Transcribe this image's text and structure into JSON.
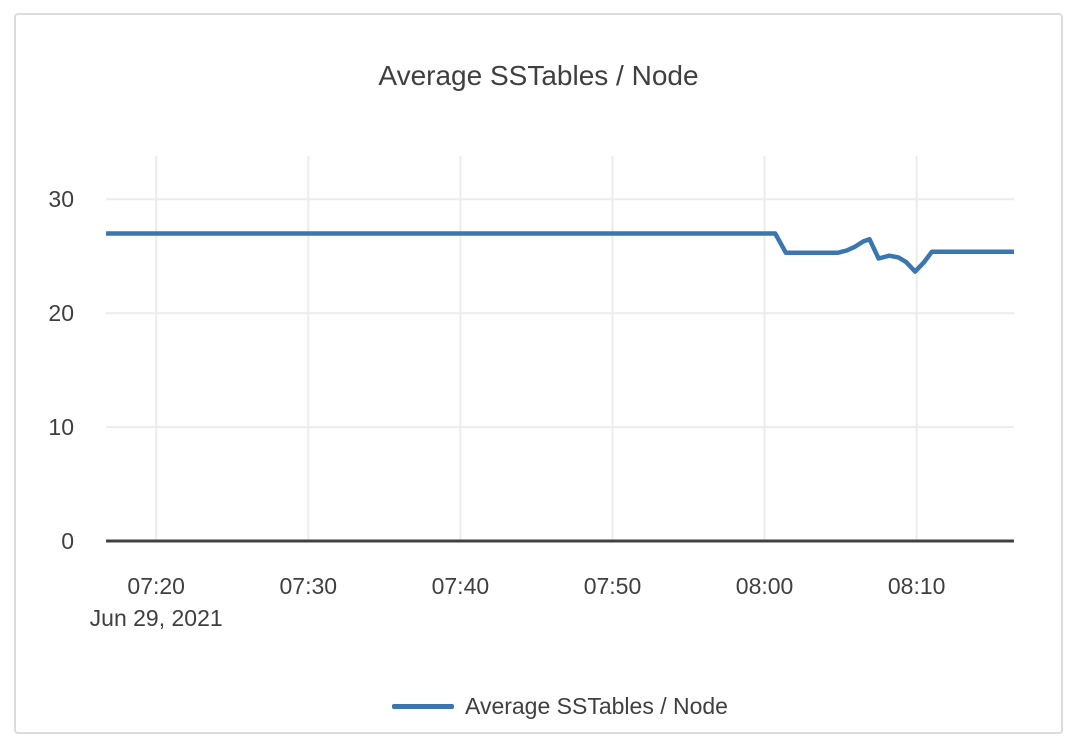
{
  "card": {
    "border_color": "#dcdcdc",
    "background": "#ffffff"
  },
  "chart_data": {
    "type": "line",
    "title": "Average SSTables / Node",
    "legend": {
      "position": "bottom",
      "label": "Average SSTables / Node"
    },
    "colors": {
      "line": "#3c76b0",
      "grid": "#ececec",
      "axis": "#424242",
      "text": "#3f3f3f"
    },
    "x_axis": {
      "date_label": "Jun 29, 2021",
      "unit": "time (HH:MM), minutes measured after 07:00",
      "range_minutes": [
        16.7,
        76.4
      ],
      "grid": true,
      "ticks": [
        {
          "minute": 20,
          "label": "07:20"
        },
        {
          "minute": 30,
          "label": "07:30"
        },
        {
          "minute": 40,
          "label": "07:40"
        },
        {
          "minute": 50,
          "label": "07:50"
        },
        {
          "minute": 60,
          "label": "08:00"
        },
        {
          "minute": 70,
          "label": "08:10"
        }
      ]
    },
    "y_axis": {
      "range": [
        0,
        33.8
      ],
      "grid": true,
      "ticks": [
        0,
        10,
        20,
        30
      ]
    },
    "series": [
      {
        "name": "Average SSTables / Node",
        "color": "#3c76b0",
        "points": [
          [
            16.7,
            27.0
          ],
          [
            60.7,
            27.0
          ],
          [
            61.4,
            25.3
          ],
          [
            64.8,
            25.3
          ],
          [
            65.4,
            25.5
          ],
          [
            65.9,
            25.8
          ],
          [
            66.5,
            26.3
          ],
          [
            66.9,
            26.5
          ],
          [
            67.5,
            24.8
          ],
          [
            68.2,
            25.05
          ],
          [
            68.8,
            24.9
          ],
          [
            69.3,
            24.5
          ],
          [
            69.9,
            23.65
          ],
          [
            70.5,
            24.5
          ],
          [
            71.0,
            25.4
          ],
          [
            76.4,
            25.4
          ]
        ]
      }
    ]
  }
}
